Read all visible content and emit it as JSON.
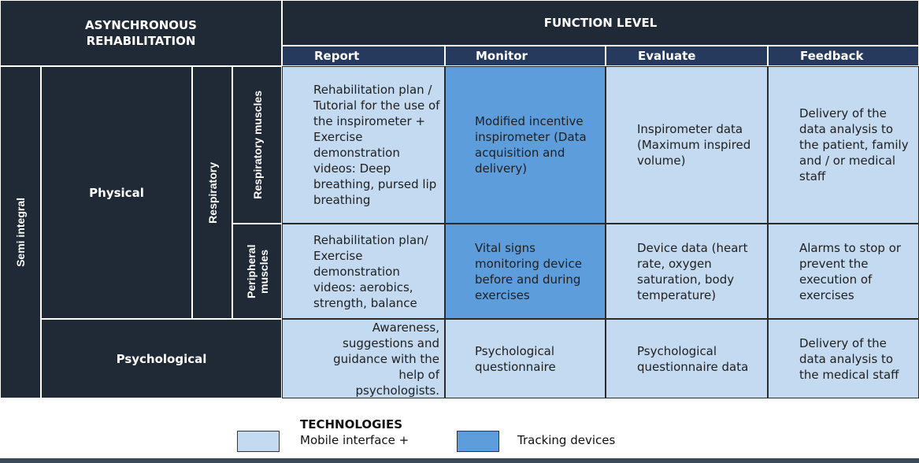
{
  "header": {
    "corner_title": "ASYNCHRONOUS REHABILITATION",
    "function_level": "FUNCTION LEVEL",
    "columns": [
      "Report",
      "Monitor",
      "Evaluate",
      "Feedback"
    ]
  },
  "left": {
    "integration": "Semi integral",
    "physical": "Physical",
    "respiratory": "Respiratory",
    "respiratory_muscles": "Respiratory muscles",
    "peripheral_muscles": "Peripheral muscles",
    "psychological": "Psychological"
  },
  "rows": [
    {
      "report": "Rehabilitation plan / Tutorial for the use of the inspirometer + Exercise demonstration videos: Deep breathing, pursed lip breathing",
      "monitor": "Modified incentive inspirometer (Data acquisition and delivery)",
      "evaluate": "Inspirometer data (Maximum inspired volume)",
      "feedback": "Delivery of the data analysis to the patient, family and / or medical staff"
    },
    {
      "report": "Rehabilitation plan/ Exercise demonstration videos: aerobics, strength, balance",
      "monitor": "Vital signs monitoring device before and during exercises",
      "evaluate": "Device data (heart rate, oxygen saturation, body temperature)",
      "feedback": "Alarms to stop or prevent the execution of exercises"
    },
    {
      "report": "Awareness, suggestions and guidance with the help of psychologists.",
      "monitor": "Psychological questionnaire",
      "evaluate": "Psychological questionnaire data",
      "feedback": "Delivery of the data analysis to the medical staff"
    }
  ],
  "legend": {
    "title": "TECHNOLOGIES",
    "items": [
      {
        "label": "Mobile interface +",
        "color": "#c4daf0"
      },
      {
        "label": "Tracking devices",
        "color": "#5e9ddb"
      }
    ]
  },
  "colors": {
    "dark": "#1f2a36",
    "header_blue": "#263a5e",
    "light_blue": "#c4daf0",
    "mid_blue": "#5e9ddb"
  }
}
